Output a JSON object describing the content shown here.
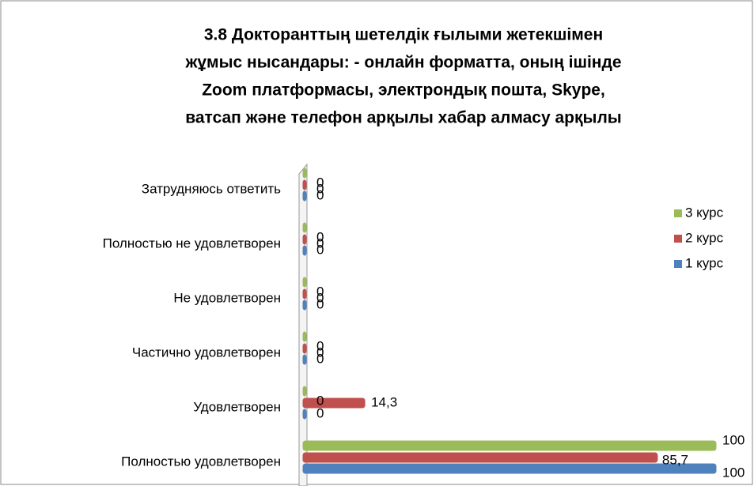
{
  "chart_data": {
    "type": "bar",
    "orientation": "horizontal",
    "title": [
      "3.8 Докторанттың шетелдік ғылыми жетекшімен",
      "жұмыс нысандары: - онлайн форматта, оның ішінде",
      "Zoom платформасы, электрондық пошта, Skype,",
      "ватсап және телефон арқылы хабар алмасу арқылы"
    ],
    "categories": [
      "Полностью удовлетворен",
      "Удовлетворен",
      "Частично удовлетворен",
      "Не удовлетворен",
      "Полностью не удовлетворен",
      "Затрудняюсь ответить"
    ],
    "series": [
      {
        "name": "1 курс",
        "color": "#4f81bd",
        "values": [
          100,
          0,
          0,
          0,
          0,
          0
        ]
      },
      {
        "name": "2 курс",
        "color": "#c0504d",
        "values": [
          85.7,
          14.3,
          0,
          0,
          0,
          0
        ],
        "value_labels": [
          "85,7",
          "14,3",
          "0",
          "0",
          "0",
          "0"
        ]
      },
      {
        "name": "3 курс",
        "color": "#9bbb59",
        "values": [
          100,
          0,
          0,
          0,
          0,
          0
        ]
      }
    ],
    "legend": "right"
  }
}
